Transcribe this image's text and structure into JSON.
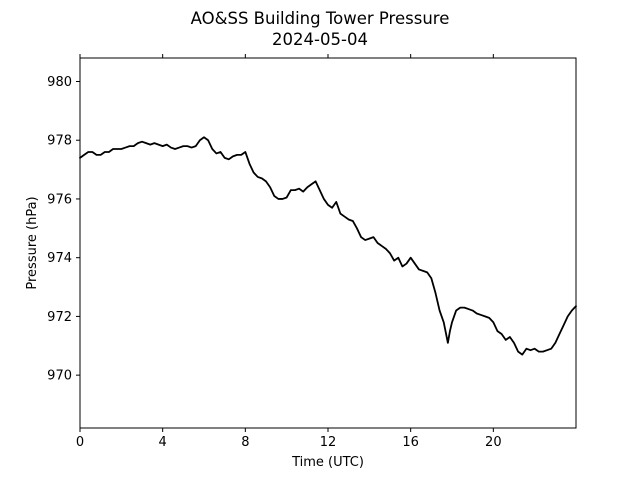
{
  "chart_data": {
    "type": "line",
    "title": "AO&SS Building Tower Pressure",
    "subtitle": "2024-05-04",
    "xlabel": "Time (UTC)",
    "ylabel": "Pressure (hPa)",
    "xlim": [
      0,
      24
    ],
    "ylim": [
      968.2,
      980.8
    ],
    "xticks": [
      0,
      4,
      8,
      12,
      16,
      20
    ],
    "yticks": [
      970,
      972,
      974,
      976,
      978,
      980
    ],
    "grid": false,
    "series_color": "#000000",
    "series": [
      {
        "x": [
          0,
          0.2,
          0.4,
          0.6,
          0.8,
          1.0,
          1.2,
          1.4,
          1.6,
          1.8,
          2.0,
          2.2,
          2.4,
          2.6,
          2.8,
          3.0,
          3.2,
          3.4,
          3.6,
          3.8,
          4.0,
          4.2,
          4.4,
          4.6,
          4.8,
          5.0,
          5.2,
          5.4,
          5.6,
          5.8,
          6.0,
          6.2,
          6.4,
          6.6,
          6.8,
          7.0,
          7.2,
          7.4,
          7.6,
          7.8,
          8.0,
          8.2,
          8.4,
          8.6,
          8.8,
          9.0,
          9.2,
          9.4,
          9.6,
          9.8,
          10.0,
          10.2,
          10.4,
          10.6,
          10.8,
          11.0,
          11.2,
          11.4,
          11.6,
          11.8,
          12.0,
          12.2,
          12.4,
          12.6,
          12.8,
          13.0,
          13.2,
          13.4,
          13.6,
          13.8,
          14.0,
          14.2,
          14.4,
          14.6,
          14.8,
          15.0,
          15.2,
          15.4,
          15.6,
          15.8,
          16.0,
          16.2,
          16.4,
          16.6,
          16.8,
          17.0,
          17.2,
          17.4,
          17.6,
          17.8,
          17.9,
          18.0,
          18.2,
          18.4,
          18.6,
          18.8,
          19.0,
          19.2,
          19.4,
          19.6,
          19.8,
          20.0,
          20.2,
          20.4,
          20.6,
          20.8,
          21.0,
          21.2,
          21.4,
          21.6,
          21.8,
          22.0,
          22.2,
          22.4,
          22.6,
          22.8,
          23.0,
          23.2,
          23.4,
          23.6,
          23.8,
          24.0
        ],
        "y": [
          977.4,
          977.5,
          977.6,
          977.6,
          977.5,
          977.5,
          977.6,
          977.6,
          977.7,
          977.7,
          977.7,
          977.75,
          977.8,
          977.8,
          977.9,
          977.95,
          977.9,
          977.85,
          977.9,
          977.85,
          977.8,
          977.85,
          977.75,
          977.7,
          977.75,
          977.8,
          977.8,
          977.75,
          977.8,
          978.0,
          978.1,
          978.0,
          977.7,
          977.55,
          977.6,
          977.4,
          977.35,
          977.45,
          977.5,
          977.5,
          977.6,
          977.2,
          976.9,
          976.75,
          976.7,
          976.6,
          976.4,
          976.1,
          976.0,
          976.0,
          976.05,
          976.3,
          976.3,
          976.35,
          976.25,
          976.4,
          976.5,
          976.6,
          976.3,
          976.0,
          975.8,
          975.7,
          975.9,
          975.5,
          975.4,
          975.3,
          975.25,
          975.0,
          974.7,
          974.6,
          974.65,
          974.7,
          974.5,
          974.4,
          974.3,
          974.15,
          973.9,
          974.0,
          973.7,
          973.8,
          974.0,
          973.8,
          973.6,
          973.55,
          973.5,
          973.3,
          972.8,
          972.2,
          971.8,
          971.1,
          971.5,
          971.8,
          972.2,
          972.3,
          972.3,
          972.25,
          972.2,
          972.1,
          972.05,
          972.0,
          971.95,
          971.8,
          971.5,
          971.4,
          971.2,
          971.3,
          971.1,
          970.8,
          970.7,
          970.9,
          970.85,
          970.9,
          970.8,
          970.8,
          970.85,
          970.9,
          971.1,
          971.4,
          971.7,
          972.0,
          972.2,
          972.35
        ]
      }
    ]
  }
}
